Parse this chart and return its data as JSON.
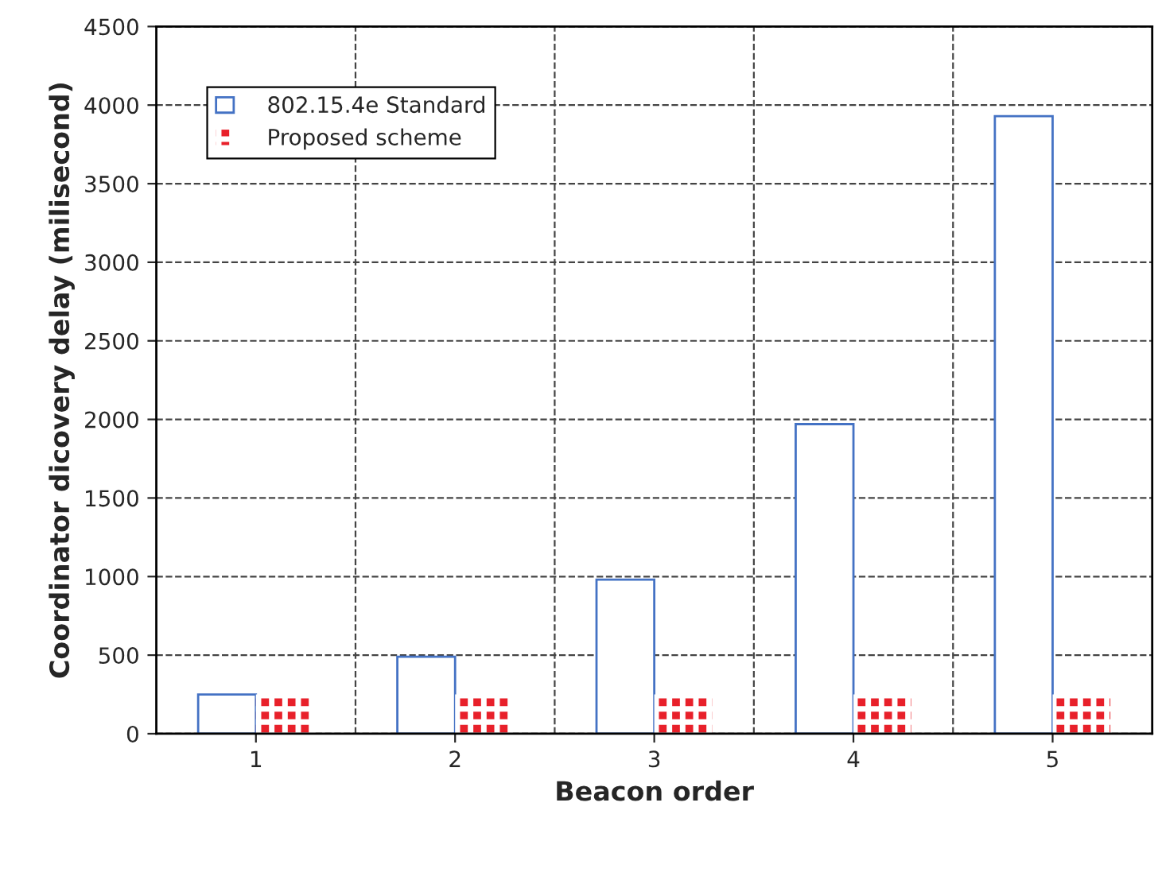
{
  "chart_data": {
    "type": "bar",
    "xlabel": "Beacon order",
    "ylabel": "Coordinator dicovery delay (milisecond)",
    "categories": [
      "1",
      "2",
      "3",
      "4",
      "5"
    ],
    "series": [
      {
        "name": "802.15.4e Standard",
        "color": "#4472c4",
        "values": [
          250,
          490,
          980,
          1970,
          3930
        ]
      },
      {
        "name": "Proposed scheme",
        "color": "#e8202a",
        "values": [
          250,
          250,
          250,
          250,
          250
        ]
      }
    ],
    "ylim": [
      0,
      4500
    ],
    "yticks": [
      0,
      500,
      1000,
      1500,
      2000,
      2500,
      3000,
      3500,
      4000,
      4500
    ],
    "grid": true,
    "legend": "top left"
  }
}
